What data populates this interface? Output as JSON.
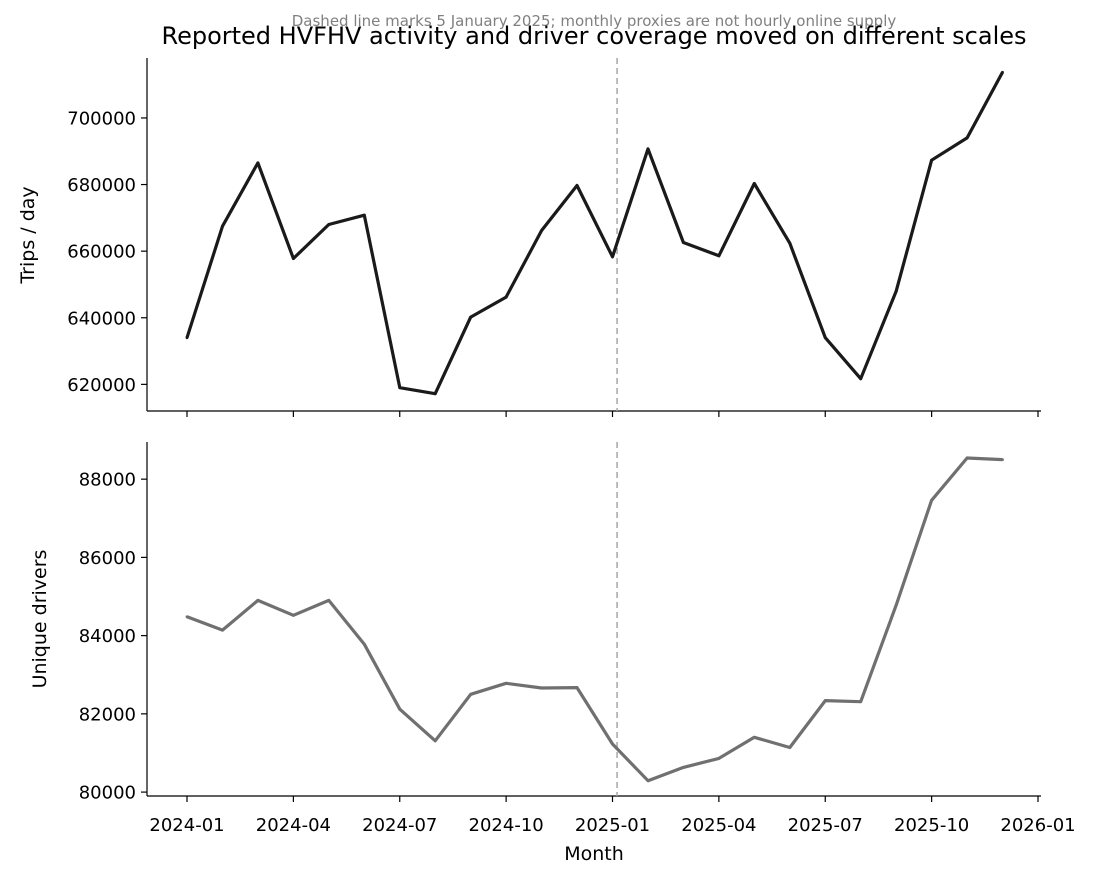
{
  "chart_data": {
    "type": "line",
    "title": "Reported HVFHV activity and driver coverage moved on different scales",
    "subtitle": "Dashed line marks 5 January 2025; monthly proxies are not hourly online supply",
    "xlabel": "Month",
    "x_ticks": [
      "2024-01",
      "2024-04",
      "2024-07",
      "2024-10",
      "2025-01",
      "2025-04",
      "2025-07",
      "2025-10",
      "2026-01"
    ],
    "marker_date": "2025-01-05",
    "x": [
      "2024-01",
      "2024-02",
      "2024-03",
      "2024-04",
      "2024-05",
      "2024-06",
      "2024-07",
      "2024-08",
      "2024-09",
      "2024-10",
      "2024-11",
      "2024-12",
      "2025-01",
      "2025-02",
      "2025-03",
      "2025-04",
      "2025-05",
      "2025-06",
      "2025-07",
      "2025-08",
      "2025-09",
      "2025-10",
      "2025-11",
      "2025-12"
    ],
    "panels": [
      {
        "ylabel": "Trips / day",
        "color": "#1a1a1a",
        "ylim": [
          612000,
          718000
        ],
        "y_ticks": [
          620000,
          640000,
          660000,
          680000,
          700000
        ],
        "values": [
          634000,
          667500,
          686500,
          657800,
          668000,
          670800,
          619000,
          617200,
          640200,
          646200,
          666200,
          679700,
          658300,
          690700,
          662600,
          658600,
          680300,
          662400,
          634000,
          621700,
          648000,
          687300,
          694000,
          713700
        ]
      },
      {
        "ylabel": "Unique drivers",
        "color": "#707070",
        "ylim": [
          79900,
          88950
        ],
        "y_ticks": [
          80000,
          82000,
          84000,
          86000,
          88000
        ],
        "values": [
          84480,
          84140,
          84900,
          84520,
          84900,
          83780,
          82120,
          81310,
          82500,
          82780,
          82660,
          82670,
          81230,
          80290,
          80630,
          80860,
          81400,
          81140,
          82340,
          82310,
          84780,
          87460,
          88540,
          88500
        ]
      }
    ]
  }
}
